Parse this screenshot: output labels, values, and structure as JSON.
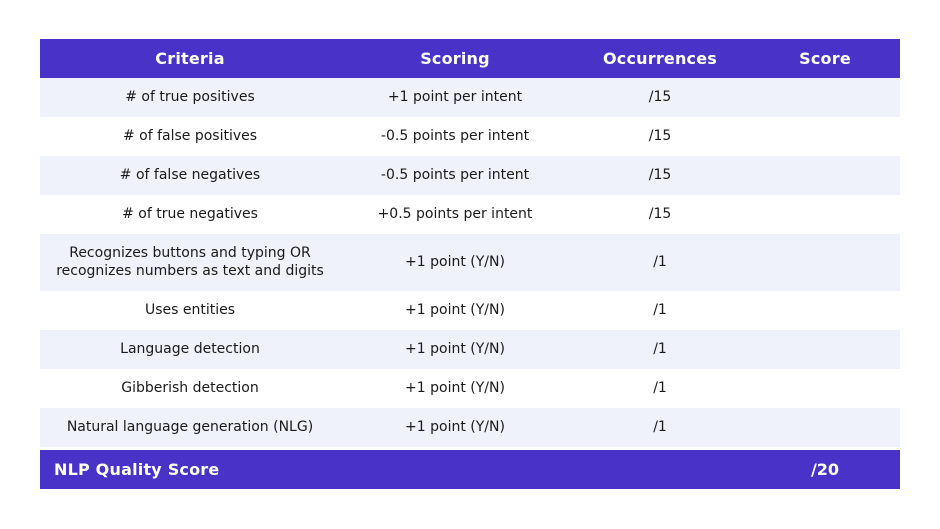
{
  "table": {
    "columns": [
      {
        "label": "Criteria"
      },
      {
        "label": "Scoring"
      },
      {
        "label": "Occurrences"
      },
      {
        "label": "Score"
      }
    ],
    "rows": [
      {
        "criteria": "# of true positives",
        "scoring": "+1 point per intent",
        "occurrences": "/15",
        "score": ""
      },
      {
        "criteria": "# of false positives",
        "scoring": "-0.5 points per intent",
        "occurrences": "/15",
        "score": ""
      },
      {
        "criteria": "# of false negatives",
        "scoring": "-0.5 points per intent",
        "occurrences": "/15",
        "score": ""
      },
      {
        "criteria": "# of true negatives",
        "scoring": "+0.5 points per intent",
        "occurrences": "/15",
        "score": ""
      },
      {
        "criteria": "Recognizes buttons and typing OR recognizes numbers as text and digits",
        "scoring": "+1 point (Y/N)",
        "occurrences": "/1",
        "score": ""
      },
      {
        "criteria": "Uses entities",
        "scoring": "+1 point (Y/N)",
        "occurrences": "/1",
        "score": ""
      },
      {
        "criteria": "Language detection",
        "scoring": "+1 point (Y/N)",
        "occurrences": "/1",
        "score": ""
      },
      {
        "criteria": "Gibberish detection",
        "scoring": "+1 point (Y/N)",
        "occurrences": "/1",
        "score": ""
      },
      {
        "criteria": "Natural language generation (NLG)",
        "scoring": "+1 point (Y/N)",
        "occurrences": "/1",
        "score": ""
      }
    ],
    "footer": {
      "label": "NLP Quality Score",
      "total": "/20"
    }
  },
  "colors": {
    "header_bg": "#4832C8",
    "header_text": "#FFFFFF",
    "row_bg": "#FFFFFF",
    "row_alt_bg": "#EFF1FB",
    "body_text": "#1A1A1A",
    "footer_bg": "#4832C8",
    "footer_text": "#FFFFFF"
  }
}
